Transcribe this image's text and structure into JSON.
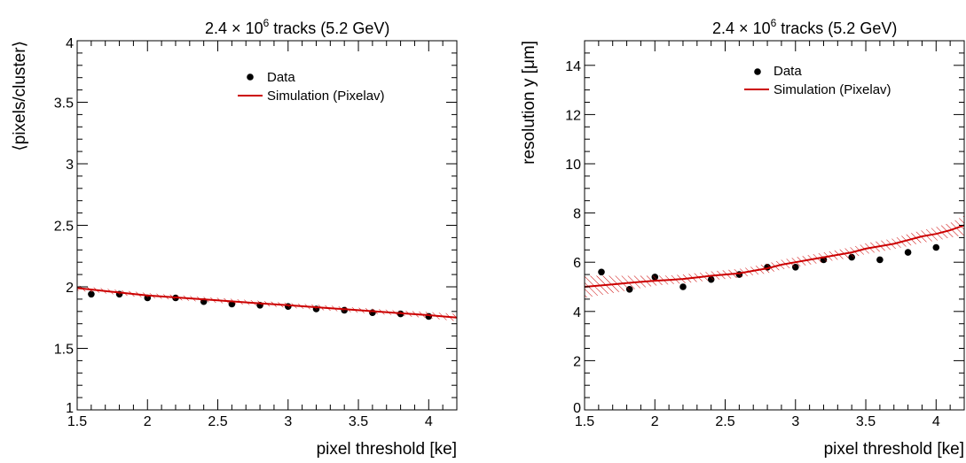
{
  "chart_data": [
    {
      "type": "scatter",
      "title_prefix": "2.4",
      "title_times": "×",
      "title_base": "10",
      "title_exp": "6",
      "title_suffix": " tracks (5.2 GeV)",
      "xlabel": "pixel threshold [ke]",
      "ylabel": "⟨pixels/cluster⟩",
      "xlim": [
        1.5,
        4.2
      ],
      "ylim": [
        1,
        4
      ],
      "x_major_ticks": [
        1.5,
        2,
        2.5,
        3,
        3.5,
        4
      ],
      "x_tick_labels": [
        "1.5",
        "2",
        "2.5",
        "3",
        "3.5",
        "4"
      ],
      "y_major_ticks": [
        1,
        1.5,
        2,
        2.5,
        3,
        3.5,
        4
      ],
      "y_tick_labels": [
        "1",
        "1.5",
        "2",
        "2.5",
        "3",
        "3.5",
        "4"
      ],
      "legend": [
        {
          "label": "Data"
        },
        {
          "label": "Simulation (Pixelav)"
        }
      ],
      "legend_position": "top-right",
      "grid": false,
      "series": [
        {
          "name": "Data",
          "style": "markers",
          "color": "#000000",
          "x": [
            1.6,
            1.8,
            2.0,
            2.2,
            2.4,
            2.6,
            2.8,
            3.0,
            3.2,
            3.4,
            3.6,
            3.8,
            4.0
          ],
          "y": [
            1.94,
            1.94,
            1.91,
            1.91,
            1.88,
            1.86,
            1.85,
            1.84,
            1.82,
            1.81,
            1.79,
            1.78,
            1.76
          ]
        },
        {
          "name": "Simulation (Pixelav)",
          "style": "line_with_band",
          "color": "#cc0000",
          "x": [
            1.5,
            1.75,
            2.0,
            2.25,
            2.5,
            2.75,
            3.0,
            3.25,
            3.5,
            3.75,
            4.0,
            4.2
          ],
          "y": [
            1.99,
            1.96,
            1.93,
            1.91,
            1.89,
            1.87,
            1.85,
            1.83,
            1.81,
            1.79,
            1.77,
            1.75
          ],
          "band": [
            0.02,
            0.02,
            0.02,
            0.02,
            0.02,
            0.02,
            0.02,
            0.02,
            0.02,
            0.02,
            0.025,
            0.03
          ]
        }
      ]
    },
    {
      "type": "scatter",
      "title_prefix": "2.4",
      "title_times": "×",
      "title_base": "10",
      "title_exp": "6",
      "title_suffix": " tracks (5.2 GeV)",
      "xlabel": "pixel threshold [ke]",
      "ylabel": "resolution y  [μm]",
      "xlim": [
        1.5,
        4.2
      ],
      "ylim": [
        0,
        15
      ],
      "x_major_ticks": [
        1.5,
        2,
        2.5,
        3,
        3.5,
        4
      ],
      "x_tick_labels": [
        "1.5",
        "2",
        "2.5",
        "3",
        "3.5",
        "4"
      ],
      "y_major_ticks": [
        0,
        2,
        4,
        6,
        8,
        10,
        12,
        14
      ],
      "y_tick_labels": [
        "0",
        "2",
        "4",
        "6",
        "8",
        "10",
        "12",
        "14"
      ],
      "legend": [
        {
          "label": "Data"
        },
        {
          "label": "Simulation (Pixelav)"
        }
      ],
      "legend_position": "top-right",
      "grid": false,
      "series": [
        {
          "name": "Data",
          "style": "markers",
          "color": "#000000",
          "x": [
            1.62,
            1.82,
            2.0,
            2.2,
            2.4,
            2.6,
            2.8,
            3.0,
            3.2,
            3.4,
            3.6,
            3.8,
            4.0
          ],
          "y": [
            5.6,
            4.9,
            5.4,
            5.0,
            5.3,
            5.5,
            5.8,
            5.8,
            6.1,
            6.2,
            6.1,
            6.4,
            6.6
          ]
        },
        {
          "name": "Simulation (Pixelav)",
          "style": "line_with_band",
          "color": "#cc0000",
          "x": [
            1.5,
            1.6,
            1.7,
            1.8,
            1.9,
            2.0,
            2.1,
            2.2,
            2.3,
            2.4,
            2.5,
            2.6,
            2.7,
            2.8,
            2.9,
            3.0,
            3.1,
            3.2,
            3.3,
            3.4,
            3.5,
            3.6,
            3.7,
            3.8,
            3.9,
            4.0,
            4.1,
            4.2
          ],
          "y": [
            5.0,
            5.05,
            5.1,
            5.15,
            5.2,
            5.25,
            5.28,
            5.32,
            5.38,
            5.45,
            5.5,
            5.55,
            5.65,
            5.75,
            5.9,
            6.0,
            6.1,
            6.2,
            6.3,
            6.4,
            6.55,
            6.65,
            6.75,
            6.9,
            7.05,
            7.15,
            7.3,
            7.5
          ],
          "band": [
            0.45,
            0.4,
            0.35,
            0.3,
            0.25,
            0.2,
            0.18,
            0.18,
            0.18,
            0.18,
            0.18,
            0.18,
            0.18,
            0.2,
            0.2,
            0.2,
            0.2,
            0.2,
            0.2,
            0.22,
            0.22,
            0.22,
            0.22,
            0.25,
            0.25,
            0.28,
            0.3,
            0.4
          ]
        }
      ]
    }
  ]
}
